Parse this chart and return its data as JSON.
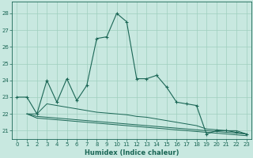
{
  "bg_color": "#c8e8e0",
  "grid_color": "#9fcfbe",
  "line_color": "#1a6655",
  "xlabel": "Humidex (Indice chaleur)",
  "xlim": [
    -0.5,
    23.5
  ],
  "ylim": [
    20.5,
    28.7
  ],
  "yticks": [
    21,
    22,
    23,
    24,
    25,
    26,
    27,
    28
  ],
  "xticks": [
    0,
    1,
    2,
    3,
    4,
    5,
    6,
    7,
    8,
    9,
    10,
    11,
    12,
    13,
    14,
    15,
    16,
    17,
    18,
    19,
    20,
    21,
    22,
    23
  ],
  "line1_x": [
    0,
    1,
    2,
    3,
    4,
    5,
    6,
    7,
    8,
    9,
    10,
    11,
    12,
    13,
    14,
    15,
    16,
    17,
    18,
    19,
    20,
    21,
    22,
    23
  ],
  "line1_y": [
    23.0,
    23.0,
    22.0,
    24.0,
    22.7,
    24.1,
    22.8,
    23.7,
    26.5,
    26.6,
    28.0,
    27.5,
    24.1,
    24.1,
    24.3,
    23.6,
    22.7,
    22.6,
    22.5,
    20.8,
    21.0,
    21.0,
    20.9,
    20.8
  ],
  "line2_x": [
    1,
    2,
    3,
    4,
    5,
    6,
    7,
    8,
    9,
    10,
    11,
    12,
    13,
    14,
    15,
    16,
    17,
    18,
    19,
    20,
    21,
    22,
    23
  ],
  "line2_y": [
    22.0,
    22.0,
    22.6,
    22.5,
    22.4,
    22.3,
    22.2,
    22.1,
    22.05,
    22.0,
    21.95,
    21.85,
    21.8,
    21.7,
    21.6,
    21.5,
    21.4,
    21.3,
    21.1,
    21.05,
    21.0,
    21.0,
    20.8
  ],
  "line3_x": [
    1,
    2,
    3,
    4,
    5,
    6,
    7,
    8,
    9,
    10,
    11,
    12,
    13,
    14,
    15,
    16,
    17,
    18,
    19,
    20,
    21,
    22,
    23
  ],
  "line3_y": [
    22.0,
    21.85,
    21.8,
    21.75,
    21.7,
    21.65,
    21.6,
    21.55,
    21.5,
    21.45,
    21.4,
    21.35,
    21.3,
    21.25,
    21.2,
    21.15,
    21.1,
    21.05,
    21.0,
    20.95,
    20.9,
    20.85,
    20.8
  ],
  "line4_x": [
    1,
    2,
    3,
    4,
    5,
    6,
    7,
    8,
    9,
    10,
    11,
    12,
    13,
    14,
    15,
    16,
    17,
    18,
    19,
    20,
    21,
    22,
    23
  ],
  "line4_y": [
    22.0,
    21.75,
    21.7,
    21.65,
    21.6,
    21.55,
    21.5,
    21.45,
    21.4,
    21.35,
    21.3,
    21.25,
    21.2,
    21.15,
    21.1,
    21.05,
    21.0,
    20.95,
    20.9,
    20.85,
    20.8,
    20.75,
    20.7
  ]
}
